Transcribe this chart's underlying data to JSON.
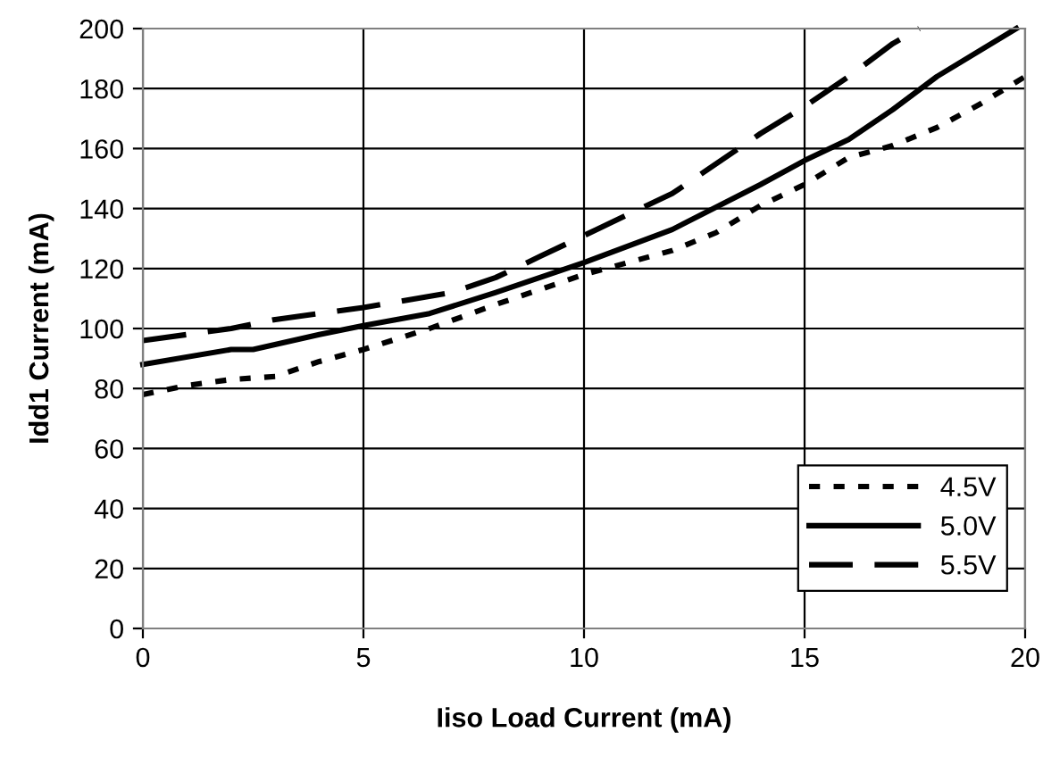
{
  "chart_data": {
    "type": "line",
    "xlabel": "Iiso Load Current (mA)",
    "ylabel": "Idd1 Current (mA)",
    "xlim": [
      0,
      20
    ],
    "xticks": [
      0,
      5,
      10,
      15,
      20
    ],
    "ylim": [
      0,
      200
    ],
    "yticks": [
      0,
      20,
      40,
      60,
      80,
      100,
      120,
      140,
      160,
      180,
      200
    ],
    "grid": true,
    "legend": "bottom right",
    "series": [
      {
        "name": "4.5V",
        "color": "#000000",
        "line_style": "dotted",
        "x": [
          0,
          1,
          2,
          3,
          4,
          5,
          6.5,
          8,
          10,
          12,
          13,
          14,
          15,
          16,
          17,
          18,
          19,
          20
        ],
        "values": [
          78,
          81,
          83,
          84,
          89,
          93,
          100,
          108,
          118,
          126,
          132,
          141,
          148,
          157,
          161,
          167,
          175,
          184
        ]
      },
      {
        "name": "5.0V",
        "color": "#000000",
        "line_style": "solid",
        "x": [
          0,
          2,
          2.5,
          4,
          5,
          6.5,
          8,
          10,
          12,
          14,
          15,
          16,
          17,
          18,
          19.8
        ],
        "values": [
          88,
          93,
          93,
          98,
          101,
          105,
          112,
          122,
          133,
          148,
          156,
          163,
          173,
          184,
          200
        ]
      },
      {
        "name": "5.5V",
        "color": "#000000",
        "line_style": "dashed",
        "x": [
          0,
          2,
          3,
          5,
          7,
          8,
          9,
          10,
          12,
          14,
          15,
          16,
          17,
          17.6
        ],
        "values": [
          96,
          100,
          103,
          107,
          112,
          117,
          124,
          131,
          145,
          165,
          174,
          184,
          195,
          200
        ]
      }
    ]
  }
}
